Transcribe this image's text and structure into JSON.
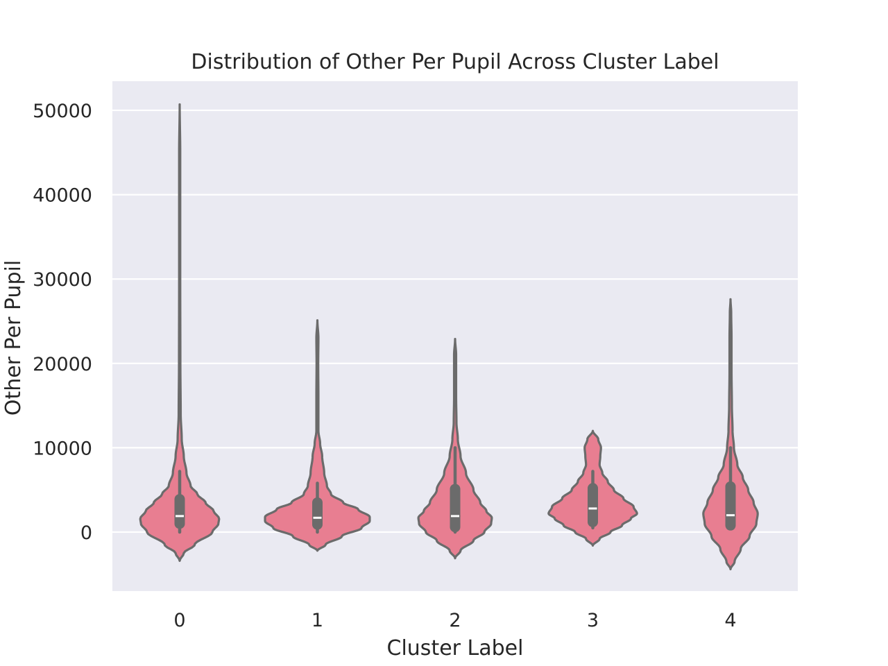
{
  "chart_data": {
    "type": "violin",
    "title": "Distribution of Other Per Pupil Across Cluster Label",
    "xlabel": "Cluster Label",
    "ylabel": "Other Per Pupil",
    "categories": [
      "0",
      "1",
      "2",
      "3",
      "4"
    ],
    "yticks": [
      0,
      10000,
      20000,
      30000,
      40000,
      50000
    ],
    "ylim": [
      -7000,
      53500
    ],
    "grid": true,
    "legend": "none",
    "colors": {
      "violin_fill": "#e87e91",
      "violin_edge": "#6b6b6b",
      "box": "#6b6b6b",
      "median": "#ffffff",
      "plot_background": "#eaeaf2",
      "grid": "#ffffff"
    },
    "violins": [
      {
        "category": "0",
        "min": -3400,
        "max": 50700,
        "q1": 1000,
        "median": 1900,
        "q3": 3900,
        "whisker_low": 0,
        "whisker_high": 7200,
        "profile": [
          [
            -3400,
            0
          ],
          [
            -2500,
            0.06
          ],
          [
            -1500,
            0.22
          ],
          [
            0,
            0.48
          ],
          [
            1000,
            0.57
          ],
          [
            1600,
            0.58
          ],
          [
            2500,
            0.5
          ],
          [
            3500,
            0.38
          ],
          [
            4500,
            0.26
          ],
          [
            5500,
            0.16
          ],
          [
            7000,
            0.1
          ],
          [
            9000,
            0.06
          ],
          [
            11000,
            0.03
          ],
          [
            14000,
            0.015
          ],
          [
            20000,
            0.01
          ],
          [
            30000,
            0.008
          ],
          [
            45000,
            0.008
          ],
          [
            50700,
            0
          ]
        ]
      },
      {
        "category": "1",
        "min": -2200,
        "max": 25100,
        "q1": 900,
        "median": 1700,
        "q3": 3500,
        "whisker_low": 0,
        "whisker_high": 5800,
        "profile": [
          [
            -2200,
            0
          ],
          [
            -1500,
            0.12
          ],
          [
            -500,
            0.36
          ],
          [
            500,
            0.65
          ],
          [
            1300,
            0.77
          ],
          [
            1800,
            0.77
          ],
          [
            2700,
            0.6
          ],
          [
            3500,
            0.38
          ],
          [
            4500,
            0.2
          ],
          [
            5500,
            0.14
          ],
          [
            7000,
            0.1
          ],
          [
            9000,
            0.07
          ],
          [
            10500,
            0.04
          ],
          [
            12000,
            0.015
          ],
          [
            16000,
            0.015
          ],
          [
            20000,
            0.012
          ],
          [
            23000,
            0.015
          ],
          [
            25100,
            0
          ]
        ]
      },
      {
        "category": "2",
        "min": -3100,
        "max": 22900,
        "q1": 600,
        "median": 1900,
        "q3": 5100,
        "whisker_low": 0,
        "whisker_high": 10000,
        "profile": [
          [
            -3100,
            0
          ],
          [
            -2200,
            0.08
          ],
          [
            -1000,
            0.27
          ],
          [
            0,
            0.43
          ],
          [
            1000,
            0.53
          ],
          [
            1700,
            0.54
          ],
          [
            2500,
            0.46
          ],
          [
            3500,
            0.37
          ],
          [
            5000,
            0.27
          ],
          [
            7000,
            0.16
          ],
          [
            9000,
            0.08
          ],
          [
            11000,
            0.04
          ],
          [
            13000,
            0.02
          ],
          [
            16000,
            0.015
          ],
          [
            19000,
            0.015
          ],
          [
            21000,
            0.015
          ],
          [
            22900,
            0
          ]
        ]
      },
      {
        "category": "3",
        "min": -1600,
        "max": 12000,
        "q1": 1200,
        "median": 2800,
        "q3": 5200,
        "whisker_low": 500,
        "whisker_high": 7200,
        "profile": [
          [
            -1600,
            0
          ],
          [
            -800,
            0.1
          ],
          [
            0,
            0.26
          ],
          [
            800,
            0.43
          ],
          [
            1600,
            0.56
          ],
          [
            2200,
            0.65
          ],
          [
            3000,
            0.6
          ],
          [
            4000,
            0.45
          ],
          [
            5000,
            0.31
          ],
          [
            6000,
            0.22
          ],
          [
            7000,
            0.14
          ],
          [
            8000,
            0.1
          ],
          [
            9000,
            0.11
          ],
          [
            10000,
            0.12
          ],
          [
            11000,
            0.08
          ],
          [
            12000,
            0
          ]
        ]
      },
      {
        "category": "4",
        "min": -4400,
        "max": 27600,
        "q1": 800,
        "median": 2000,
        "q3": 5400,
        "whisker_low": 600,
        "whisker_high": 10000,
        "profile": [
          [
            -4400,
            0
          ],
          [
            -3500,
            0.06
          ],
          [
            -2000,
            0.15
          ],
          [
            -500,
            0.28
          ],
          [
            1000,
            0.38
          ],
          [
            2200,
            0.4
          ],
          [
            3500,
            0.34
          ],
          [
            5000,
            0.26
          ],
          [
            6500,
            0.18
          ],
          [
            8000,
            0.1
          ],
          [
            10000,
            0.05
          ],
          [
            12000,
            0.03
          ],
          [
            15000,
            0.02
          ],
          [
            19000,
            0.015
          ],
          [
            23000,
            0.015
          ],
          [
            26000,
            0.01
          ],
          [
            27600,
            0
          ]
        ]
      }
    ]
  }
}
